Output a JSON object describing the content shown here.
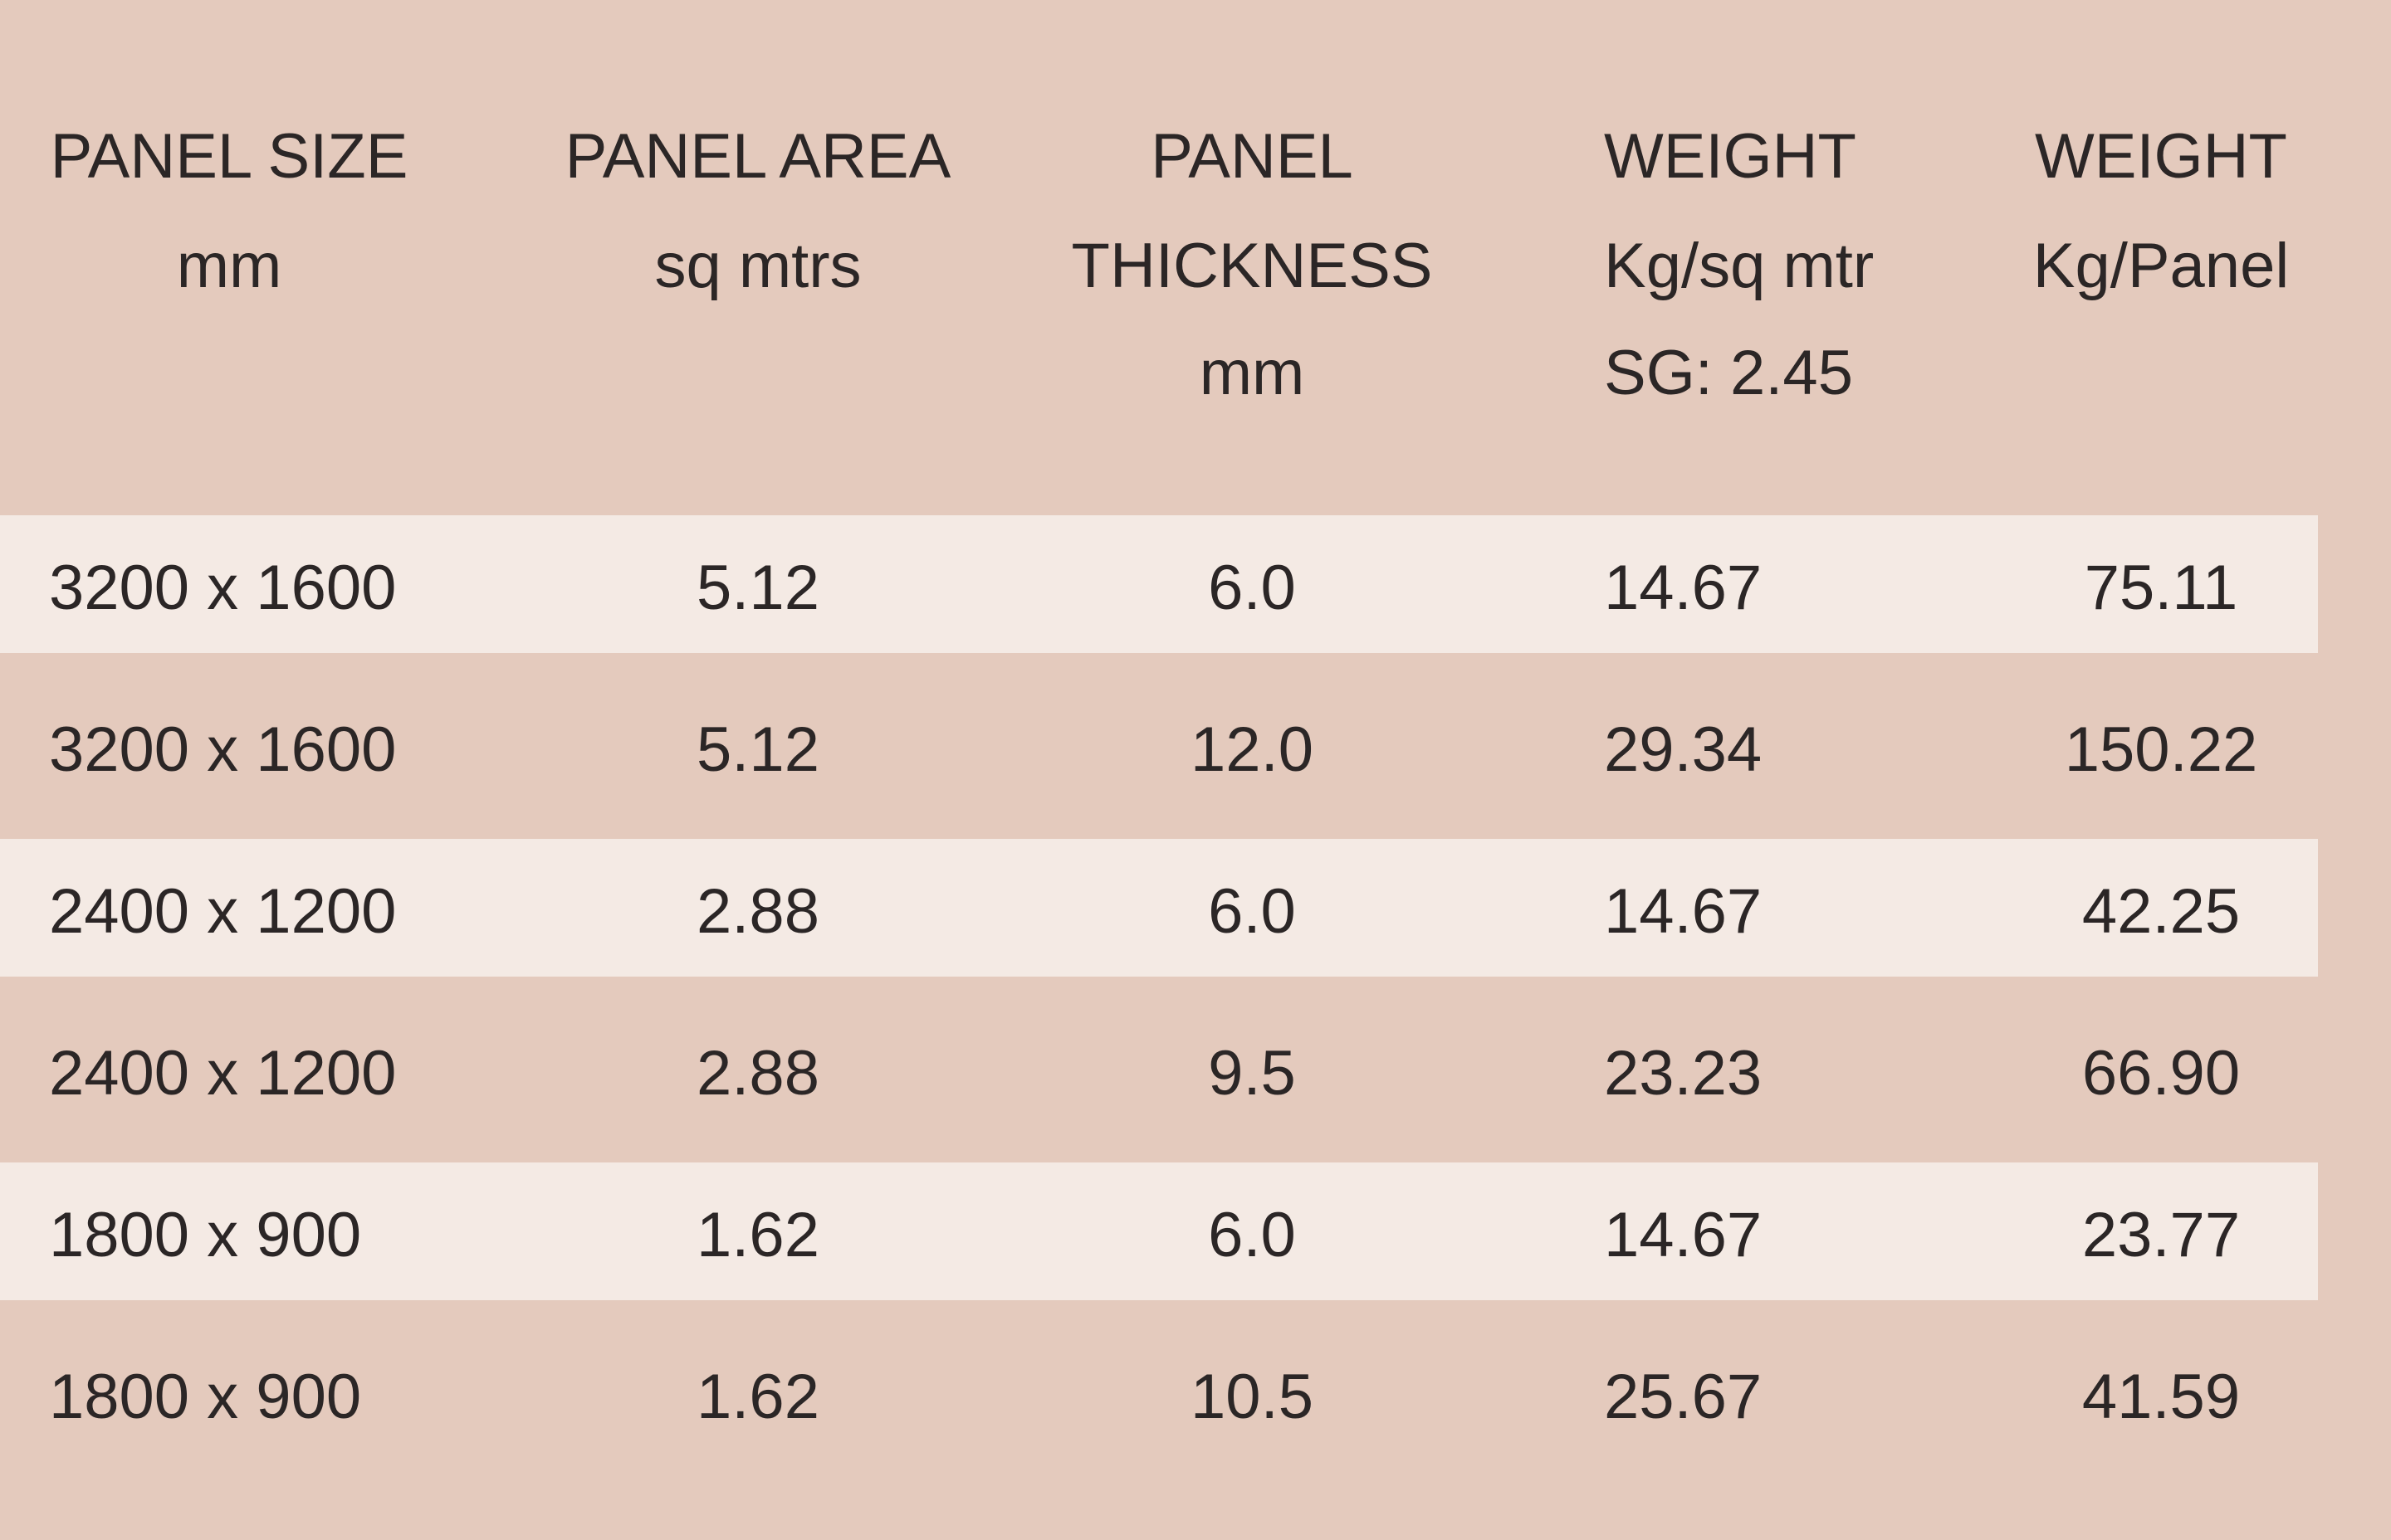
{
  "table": {
    "header": [
      [
        "PANEL SIZE",
        "mm"
      ],
      [
        "PANEL AREA",
        "sq mtrs"
      ],
      [
        "PANEL",
        "THICKNESS",
        "mm"
      ],
      [
        "WEIGHT",
        "Kg/sq mtr",
        "SG: 2.45"
      ],
      [
        "WEIGHT",
        "Kg/Panel"
      ]
    ],
    "rows": [
      [
        "3200 x 1600",
        "5.12",
        "6.0",
        "14.67",
        "75.11"
      ],
      [
        "3200 x 1600",
        "5.12",
        "12.0",
        "29.34",
        "150.22"
      ],
      [
        "2400 x 1200",
        "2.88",
        "6.0",
        "14.67",
        "42.25"
      ],
      [
        "2400 x 1200",
        "2.88",
        "9.5",
        "23.23",
        "66.90"
      ],
      [
        "1800 x 900",
        "1.62",
        "6.0",
        "14.67",
        "23.77"
      ],
      [
        "1800 x 900",
        "1.62",
        "10.5",
        "25.67",
        "41.59"
      ]
    ]
  }
}
